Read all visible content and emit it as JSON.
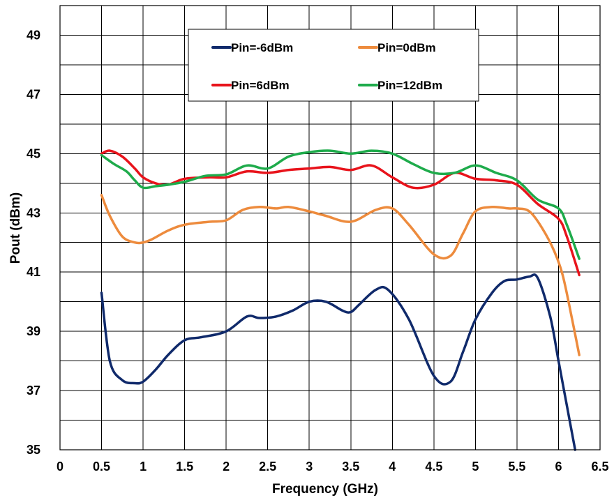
{
  "chart_data": {
    "type": "line",
    "title": "",
    "xlabel": "Frequency (GHz)",
    "ylabel": "Pout (dBm)",
    "xlim": [
      0,
      6.5
    ],
    "ylim": [
      35,
      50
    ],
    "x_ticks": [
      0,
      0.5,
      1,
      1.5,
      2,
      2.5,
      3,
      3.5,
      4,
      4.5,
      5,
      5.5,
      6,
      6.5
    ],
    "x_tick_labels": [
      "0",
      "0.5",
      "1",
      "1.5",
      "2",
      "2.5",
      "3",
      "3.5",
      "4",
      "4.5",
      "5",
      "5.5",
      "6",
      "6.5"
    ],
    "y_gridlines": [
      35,
      36,
      37,
      38,
      39,
      40,
      41,
      42,
      43,
      44,
      45,
      46,
      47,
      48,
      49,
      50
    ],
    "y_ticks": [
      35,
      37,
      39,
      41,
      43,
      45,
      47,
      49
    ],
    "y_tick_labels": [
      "35",
      "37",
      "39",
      "41",
      "43",
      "45",
      "47",
      "49"
    ],
    "grid": true,
    "legend_position": "top-center",
    "series": [
      {
        "name": "Pin=-6dBm",
        "color": "#102a6b",
        "x": [
          0.5,
          0.6,
          0.75,
          0.9,
          1.0,
          1.15,
          1.3,
          1.5,
          1.7,
          2.0,
          2.25,
          2.4,
          2.6,
          2.8,
          3.0,
          3.2,
          3.4,
          3.5,
          3.6,
          3.8,
          3.95,
          4.2,
          4.5,
          4.7,
          4.85,
          5.0,
          5.2,
          5.35,
          5.5,
          5.65,
          5.75,
          5.9,
          6.0,
          6.1,
          6.2
        ],
        "y": [
          40.3,
          38.0,
          37.35,
          37.25,
          37.3,
          37.7,
          38.2,
          38.7,
          38.8,
          39.0,
          39.5,
          39.45,
          39.5,
          39.7,
          40.0,
          40.0,
          39.7,
          39.65,
          39.9,
          40.4,
          40.4,
          39.4,
          37.5,
          37.3,
          38.3,
          39.4,
          40.3,
          40.7,
          40.75,
          40.85,
          40.8,
          39.5,
          38.0,
          36.5,
          35.0
        ]
      },
      {
        "name": "Pin=0dBm",
        "color": "#ed8b3d",
        "x": [
          0.5,
          0.6,
          0.75,
          0.9,
          1.0,
          1.1,
          1.3,
          1.5,
          1.8,
          2.0,
          2.2,
          2.4,
          2.6,
          2.75,
          3.0,
          3.2,
          3.5,
          3.8,
          4.0,
          4.2,
          4.5,
          4.7,
          4.85,
          5.0,
          5.2,
          5.4,
          5.5,
          5.65,
          5.8,
          5.95,
          6.05,
          6.15,
          6.25
        ],
        "y": [
          43.6,
          42.9,
          42.2,
          42.0,
          42.0,
          42.1,
          42.4,
          42.6,
          42.7,
          42.75,
          43.1,
          43.2,
          43.15,
          43.2,
          43.05,
          42.9,
          42.7,
          43.1,
          43.15,
          42.6,
          41.6,
          41.55,
          42.3,
          43.05,
          43.2,
          43.15,
          43.15,
          43.05,
          42.5,
          41.7,
          40.9,
          39.6,
          38.2
        ]
      },
      {
        "name": "Pin=6dBm",
        "color": "#e8131b",
        "x": [
          0.5,
          0.6,
          0.75,
          0.9,
          1.0,
          1.15,
          1.3,
          1.5,
          1.8,
          2.0,
          2.25,
          2.5,
          2.75,
          3.0,
          3.25,
          3.5,
          3.75,
          4.0,
          4.25,
          4.5,
          4.75,
          5.0,
          5.25,
          5.5,
          5.75,
          6.0,
          6.1,
          6.25
        ],
        "y": [
          45.0,
          45.1,
          44.9,
          44.5,
          44.2,
          44.0,
          43.95,
          44.15,
          44.2,
          44.2,
          44.4,
          44.35,
          44.45,
          44.5,
          44.55,
          44.45,
          44.6,
          44.2,
          43.85,
          43.95,
          44.35,
          44.15,
          44.1,
          43.95,
          43.3,
          42.8,
          42.2,
          40.9
        ]
      },
      {
        "name": "Pin=12dBm",
        "color": "#1eab4b",
        "x": [
          0.5,
          0.65,
          0.8,
          0.9,
          1.0,
          1.15,
          1.3,
          1.5,
          1.75,
          2.0,
          2.25,
          2.5,
          2.75,
          3.0,
          3.25,
          3.5,
          3.75,
          4.0,
          4.25,
          4.5,
          4.75,
          5.0,
          5.25,
          5.5,
          5.75,
          6.0,
          6.1,
          6.25
        ],
        "y": [
          44.95,
          44.65,
          44.4,
          44.1,
          43.85,
          43.9,
          43.95,
          44.05,
          44.25,
          44.3,
          44.6,
          44.5,
          44.9,
          45.05,
          45.1,
          45.0,
          45.1,
          45.0,
          44.65,
          44.35,
          44.35,
          44.6,
          44.35,
          44.1,
          43.45,
          43.15,
          42.6,
          41.45
        ]
      }
    ]
  }
}
